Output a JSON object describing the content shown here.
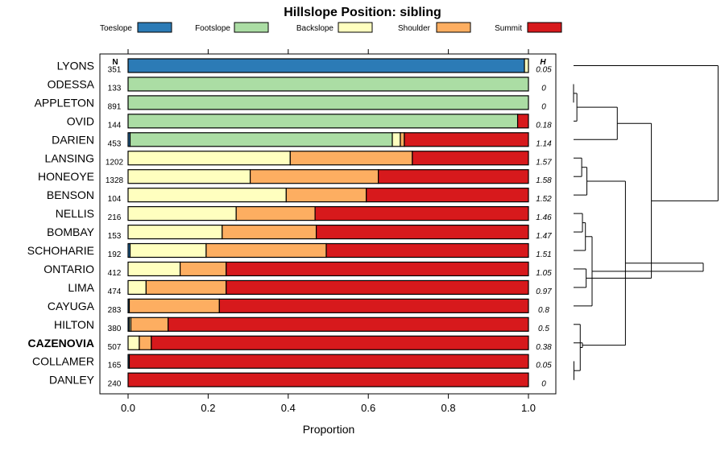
{
  "chart_data": {
    "type": "bar",
    "subtype": "stacked-horizontal-proportion",
    "title": "Hillslope Position: sibling",
    "xlabel": "Proportion",
    "ylabel": "",
    "xlim": [
      0,
      1
    ],
    "xticks": [
      0.0,
      0.2,
      0.4,
      0.6,
      0.8,
      1.0
    ],
    "xtick_labels": [
      "0.0",
      "0.2",
      "0.4",
      "0.6",
      "0.8",
      "1.0"
    ],
    "n_header": "N",
    "h_header": "H",
    "legend": [
      {
        "name": "Toeslope",
        "color": "#2c7bb6"
      },
      {
        "name": "Footslope",
        "color": "#abdda4"
      },
      {
        "name": "Backslope",
        "color": "#ffffbf"
      },
      {
        "name": "Shoulder",
        "color": "#fdae61"
      },
      {
        "name": "Summit",
        "color": "#d7191c"
      }
    ],
    "highlight": "CAZENOVIA",
    "categories": [
      "LYONS",
      "ODESSA",
      "APPLETON",
      "OVID",
      "DARIEN",
      "LANSING",
      "HONEOYE",
      "BENSON",
      "NELLIS",
      "BOMBAY",
      "SCHOHARIE",
      "ONTARIO",
      "LIMA",
      "CAYUGA",
      "HILTON",
      "CAZENOVIA",
      "COLLAMER",
      "DANLEY"
    ],
    "n": [
      "351",
      "133",
      "891",
      "144",
      "453",
      "1202",
      "1328",
      "104",
      "216",
      "153",
      "192",
      "412",
      "474",
      "283",
      "380",
      "507",
      "165",
      "240"
    ],
    "h": [
      "0.05",
      "0",
      "0",
      "0.18",
      "1.14",
      "1.57",
      "1.58",
      "1.52",
      "1.46",
      "1.47",
      "1.51",
      "1.05",
      "0.97",
      "0.8",
      "0.5",
      "0.38",
      "0.05",
      "0"
    ],
    "series": [
      {
        "name": "Toeslope",
        "values": [
          0.99,
          0,
          0,
          0,
          0.005,
          0,
          0,
          0,
          0,
          0,
          0.005,
          0,
          0,
          0.003,
          0.003,
          0,
          0.003,
          0
        ]
      },
      {
        "name": "Footslope",
        "values": [
          0,
          1.0,
          1.0,
          0.973,
          0.655,
          0,
          0,
          0,
          0,
          0,
          0,
          0,
          0,
          0,
          0,
          0,
          0,
          0
        ]
      },
      {
        "name": "Backslope",
        "values": [
          0.01,
          0,
          0,
          0,
          0.02,
          0.405,
          0.305,
          0.395,
          0.27,
          0.235,
          0.19,
          0.13,
          0.045,
          0,
          0.004,
          0.028,
          0,
          0
        ]
      },
      {
        "name": "Shoulder",
        "values": [
          0,
          0,
          0,
          0,
          0.01,
          0.305,
          0.32,
          0.2,
          0.197,
          0.235,
          0.3,
          0.115,
          0.2,
          0.225,
          0.093,
          0.03,
          0,
          0
        ]
      },
      {
        "name": "Summit",
        "values": [
          0,
          0,
          0,
          0.027,
          0.31,
          0.29,
          0.375,
          0.405,
          0.533,
          0.53,
          0.505,
          0.755,
          0.755,
          0.772,
          0.9,
          0.942,
          0.997,
          1.0
        ]
      }
    ],
    "dendrogram": {
      "type": "hierarchical-clustering",
      "leaf_order": [
        "LYONS",
        "ODESSA",
        "APPLETON",
        "OVID",
        "DARIEN",
        "LANSING",
        "HONEOYE",
        "BENSON",
        "NELLIS",
        "BOMBAY",
        "SCHOHARIE",
        "ONTARIO",
        "LIMA",
        "CAYUGA",
        "HILTON",
        "CAZENOVIA",
        "COLLAMER",
        "DANLEY"
      ],
      "merges": [
        {
          "a": "ODESSA",
          "b": "APPLETON",
          "h": 0.0
        },
        {
          "a": "COLLAMER",
          "b": "DANLEY",
          "h": 0.005
        },
        {
          "a": 18,
          "b": "OVID",
          "h": 0.045
        },
        {
          "a": 19,
          "b": "HILTON",
          "h": 0.09
        },
        {
          "a": "LANSING",
          "b": "HONEOYE",
          "h": 0.11
        },
        {
          "a": "NELLIS",
          "b": "BOMBAY",
          "h": 0.12
        },
        {
          "a": "CAZENOVIA",
          "b": 21,
          "h": 0.12
        },
        {
          "a": 23,
          "b": "SCHOHARIE",
          "h": 0.16
        },
        {
          "a": "ONTARIO",
          "b": "LIMA",
          "h": 0.17
        },
        {
          "a": 22,
          "b": "BENSON",
          "h": 0.18
        },
        {
          "a": 25,
          "b": "CAYUGA",
          "h": 0.25
        },
        {
          "a": 20,
          "b": "DARIEN",
          "h": 0.59
        },
        {
          "a": 27,
          "b": 24,
          "h": 0.7
        },
        {
          "a": 26,
          "b": 29,
          "h": 1.05
        },
        {
          "a": 30,
          "b": 28,
          "h": 1.75
        },
        {
          "a": "LYONS",
          "b": 31,
          "h": 1.95
        }
      ]
    }
  }
}
